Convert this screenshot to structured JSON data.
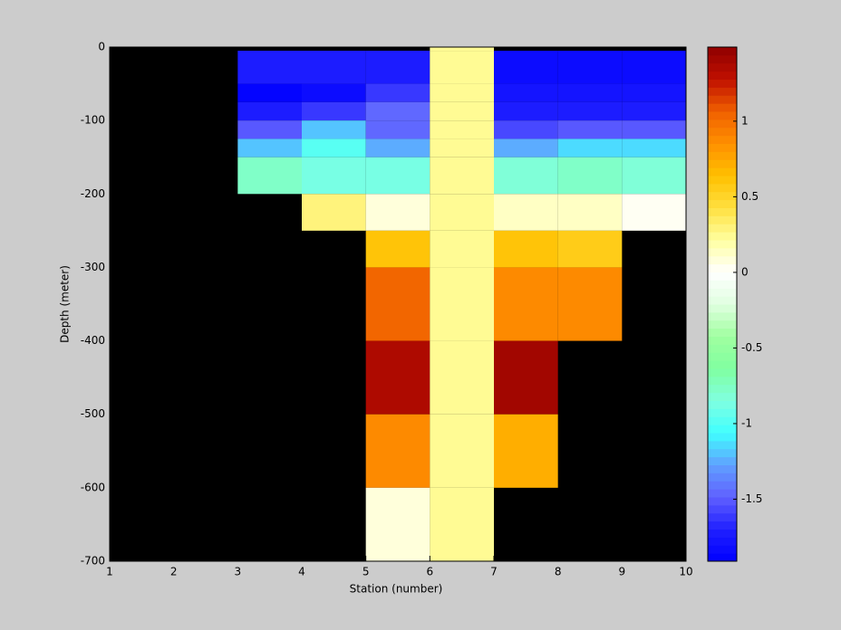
{
  "chart_data": {
    "type": "heatmap",
    "xlabel": "Station (number)",
    "ylabel": "Depth (meter)",
    "xlim": [
      1,
      10
    ],
    "ylim": [
      -700,
      0
    ],
    "xticks": [
      1,
      2,
      3,
      4,
      5,
      6,
      7,
      8,
      9,
      10
    ],
    "yticks": [
      0,
      -100,
      -200,
      -300,
      -400,
      -500,
      -600,
      -700
    ],
    "x_edges": [
      3,
      4,
      5,
      6,
      7,
      8,
      9,
      10
    ],
    "y_edges": [
      0,
      -5,
      -50,
      -75,
      -100,
      -125,
      -150,
      -200,
      -250,
      -300,
      -400,
      -500,
      -600,
      -700
    ],
    "values": [
      [
        null,
        null,
        null,
        0.25,
        null,
        null,
        null
      ],
      [
        -1.75,
        -1.75,
        -1.75,
        0.25,
        -1.85,
        -1.85,
        -1.85
      ],
      [
        -1.9,
        -1.85,
        -1.6,
        0.25,
        -1.8,
        -1.8,
        -1.8
      ],
      [
        -1.75,
        -1.6,
        -1.45,
        0.25,
        -1.7,
        -1.7,
        -1.75
      ],
      [
        -1.5,
        -1.2,
        -1.45,
        0.25,
        -1.55,
        -1.5,
        -1.5
      ],
      [
        -1.2,
        -1.0,
        -1.25,
        0.25,
        -1.25,
        -1.15,
        -1.15
      ],
      [
        -0.75,
        -0.9,
        -0.9,
        0.25,
        -0.8,
        -0.75,
        -0.8
      ],
      [
        null,
        0.3,
        0.1,
        0.25,
        0.15,
        0.15,
        0.05
      ],
      [
        null,
        null,
        0.6,
        0.25,
        0.6,
        0.55,
        null
      ],
      [
        null,
        null,
        1.05,
        0.25,
        0.9,
        0.9,
        null
      ],
      [
        null,
        null,
        1.35,
        0.25,
        1.4,
        null,
        null
      ],
      [
        null,
        null,
        0.9,
        0.25,
        0.7,
        null,
        null
      ],
      [
        null,
        null,
        0.1,
        0.25,
        null,
        null,
        null
      ]
    ],
    "background": "#000000",
    "clim": [
      -1.91,
      1.49
    ],
    "cticks": [
      -1.5,
      -1,
      -0.5,
      0,
      0.5,
      1
    ],
    "colormap_levels": 64,
    "colormap": [
      "#0000ff",
      "#2020ff",
      "#6060ff",
      "#60a0ff",
      "#40ffff",
      "#80ffe0",
      "#80ffa0",
      "#a0ffa0",
      "#e0ffe0",
      "#ffffff",
      "#ffffa0",
      "#ffe040",
      "#ffc000",
      "#ff9000",
      "#f06000",
      "#c01000",
      "#900000"
    ]
  }
}
